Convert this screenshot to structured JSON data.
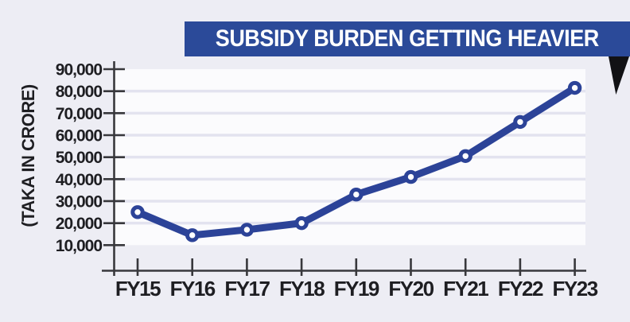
{
  "title": "SUBSIDY BURDEN GETTING HEAVIER",
  "chart_data": {
    "type": "line",
    "title": "SUBSIDY BURDEN GETTING HEAVIER",
    "categories": [
      "FY15",
      "FY16",
      "FY17",
      "FY18",
      "FY19",
      "FY20",
      "FY21",
      "FY22",
      "FY23"
    ],
    "values": [
      25000,
      14500,
      17000,
      20000,
      33000,
      41000,
      50500,
      66000,
      81500
    ],
    "xlabel": "",
    "ylabel": "(TAKA IN CRORE)",
    "ylim": [
      10000,
      90000
    ],
    "ytick_step": 10000,
    "ytick_labels": [
      "10,000",
      "20,000",
      "30,000",
      "40,000",
      "50,000",
      "60,000",
      "70,000",
      "80,000",
      "90,000"
    ],
    "grid": true,
    "legend": false,
    "marker": "open-circle"
  },
  "colors": {
    "page_bg": "#ededf4",
    "plot_bg": "#fbfbfd",
    "grid": "#e3e3ef",
    "axis": "#38383c",
    "text": "#1e1e22",
    "line": "#2c4398",
    "banner_bg": "#2b4a99",
    "banner_text": "#ffffff",
    "fold": "#111114"
  }
}
